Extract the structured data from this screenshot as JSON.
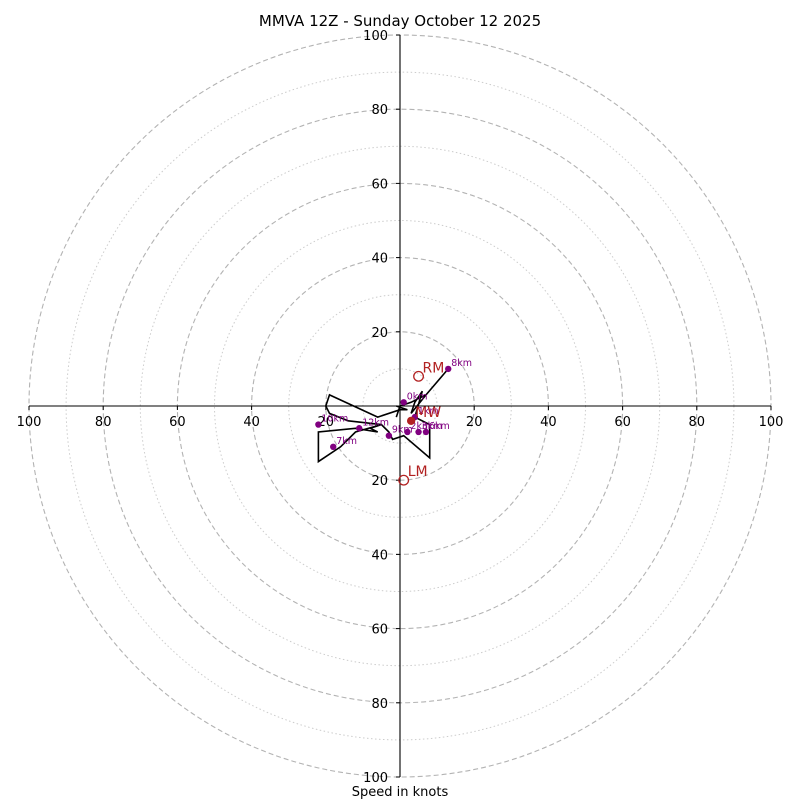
{
  "chart_data": {
    "type": "hodograph",
    "title": "MMVA 12Z - Sunday October 12 2025",
    "xlabel": "Speed in knots",
    "range": [
      -100,
      100
    ],
    "ticks_x": [
      -100,
      -80,
      -60,
      -40,
      -20,
      20,
      40,
      60,
      80,
      100
    ],
    "ticks_y": [
      -100,
      -80,
      -60,
      -40,
      -20,
      20,
      40,
      60,
      80,
      100
    ],
    "tick_labels_x": [
      "100",
      "80",
      "60",
      "40",
      "20",
      "20",
      "40",
      "60",
      "80",
      "100"
    ],
    "tick_labels_y": [
      "100",
      "80",
      "60",
      "40",
      "20",
      "20",
      "40",
      "60",
      "80",
      "100"
    ],
    "rings_dashed": [
      20,
      40,
      60,
      80,
      100
    ],
    "rings_dotted": [
      10,
      30,
      50,
      70,
      90
    ],
    "colors": {
      "trace": "#000000",
      "markers": "#800080",
      "storm": "#b22222",
      "grid": "#b3b3b3"
    },
    "trace": [
      [
        -1,
        -3
      ],
      [
        0,
        0
      ],
      [
        3,
        1
      ],
      [
        7,
        3
      ],
      [
        13,
        10
      ],
      [
        7,
        3
      ],
      [
        3,
        -2
      ],
      [
        4,
        1
      ],
      [
        6,
        4
      ],
      [
        4,
        -3
      ],
      [
        8,
        -5
      ],
      [
        8,
        -14
      ],
      [
        1,
        -8
      ],
      [
        -2,
        -9
      ],
      [
        -3,
        -7
      ],
      [
        -5,
        -5
      ],
      [
        -8,
        -6
      ],
      [
        -6,
        -7
      ],
      [
        -12,
        -6
      ],
      [
        -22,
        -7
      ],
      [
        -22,
        -10
      ],
      [
        -22,
        -15
      ],
      [
        -16,
        -11
      ],
      [
        -12,
        -7
      ],
      [
        -5,
        -5
      ],
      [
        -14,
        -4
      ],
      [
        -19,
        -2
      ],
      [
        -20,
        0
      ],
      [
        -19,
        3
      ],
      [
        -6,
        -3
      ],
      [
        0,
        -1
      ],
      [
        2,
        -1
      ],
      [
        -1,
        0
      ]
    ],
    "height_markers": [
      {
        "label": "0km",
        "u": 1,
        "v": 1
      },
      {
        "label": "1km",
        "u": 4,
        "v": -3
      },
      {
        "label": "2km",
        "u": 2,
        "v": -7
      },
      {
        "label": "3km",
        "u": 5,
        "v": -7
      },
      {
        "label": "6km",
        "u": 7,
        "v": -7
      },
      {
        "label": "8km",
        "u": 13,
        "v": 10
      },
      {
        "label": "10km",
        "u": -22,
        "v": -5
      },
      {
        "label": "7km",
        "u": -18,
        "v": -11
      },
      {
        "label": "12km",
        "u": -11,
        "v": -6
      },
      {
        "label": "9km",
        "u": -3,
        "v": -8
      }
    ],
    "storm_motion": [
      {
        "label": "RM",
        "u": 5,
        "v": 8
      },
      {
        "label": "LM",
        "u": 1,
        "v": -20
      },
      {
        "label": "MW",
        "u": 3,
        "v": -4
      }
    ]
  }
}
